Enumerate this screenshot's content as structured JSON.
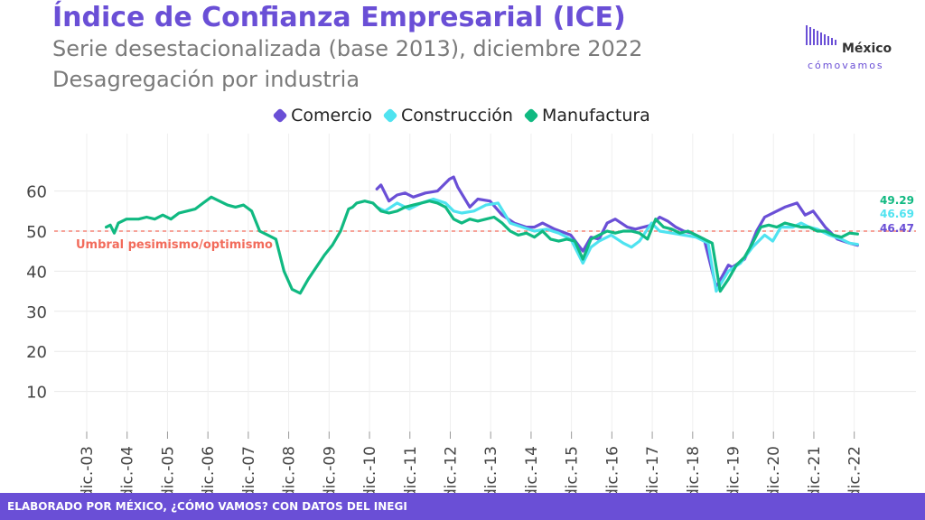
{
  "header": {
    "title": "Índice de Confianza Empresarial (ICE)",
    "subtitle1": "Serie desestacionalizada (base 2013), diciembre 2022",
    "subtitle2": "Desagregación por industria"
  },
  "logo": {
    "line1": "México",
    "line2": "cómovamos"
  },
  "footer": {
    "text": "ELABORADO POR MÉXICO, ¿CÓMO VAMOS? CON DATOS DEL INEGI"
  },
  "colors": {
    "comercio": "#6a4fd6",
    "construccion": "#4fe3f0",
    "manufactura": "#10b981",
    "threshold": "#f26b5b"
  },
  "chart_data": {
    "type": "line",
    "title": "Índice de Confianza Empresarial (ICE)",
    "ylim": [
      0,
      65
    ],
    "yticks": [
      10,
      20,
      30,
      40,
      50,
      60
    ],
    "grid": true,
    "legend_position": "top-center",
    "x_ticks": [
      "dic.-03",
      "dic.-04",
      "dic.-05",
      "dic.-06",
      "dic.-07",
      "dic.-08",
      "dic.-09",
      "dic.-10",
      "dic.-11",
      "dic.-12",
      "dic.-13",
      "dic.-14",
      "dic.-15",
      "dic.-16",
      "dic.-17",
      "dic.-18",
      "dic.-19",
      "dic.-20",
      "dic.-21",
      "dic.-22"
    ],
    "reference_line": {
      "value": 50,
      "label": "Umbral pesimismo/optimismo"
    },
    "end_labels": [
      {
        "series": "Manufactura",
        "text": "49.29"
      },
      {
        "series": "Construcción",
        "text": "46.69"
      },
      {
        "series": "Comercio",
        "text": "46.47"
      }
    ],
    "series": [
      {
        "name": "Comercio",
        "x": [
          2011.1,
          2011.2,
          2011.4,
          2011.6,
          2011.8,
          2012.0,
          2012.3,
          2012.6,
          2012.9,
          2013.0,
          2013.1,
          2013.4,
          2013.6,
          2013.9,
          2014.2,
          2014.5,
          2014.8,
          2015.0,
          2015.2,
          2015.5,
          2015.9,
          2016.2,
          2016.4,
          2016.6,
          2016.8,
          2017.0,
          2017.3,
          2017.5,
          2017.7,
          2017.9,
          2018.1,
          2018.3,
          2018.5,
          2018.7,
          2018.9,
          2019.2,
          2019.5,
          2019.8,
          2019.9,
          2020.2,
          2020.3,
          2020.5,
          2020.7,
          2021.0,
          2021.2,
          2021.5,
          2021.7,
          2021.9,
          2022.2,
          2022.5,
          2022.8,
          2023.0
        ],
        "y": [
          60.5,
          61.5,
          57.5,
          59,
          59.5,
          58.5,
          59.5,
          60,
          63,
          63.5,
          61,
          56,
          58,
          57.5,
          54,
          52,
          51,
          51,
          52,
          50.5,
          49,
          45,
          48.5,
          48,
          52,
          53,
          51,
          50.5,
          51,
          51.5,
          53.5,
          52.5,
          51,
          50,
          49.5,
          48,
          36,
          41.5,
          41,
          43,
          45,
          50,
          53.5,
          55,
          56,
          57,
          54,
          55,
          51,
          48,
          47,
          46.47
        ]
      },
      {
        "name": "Construcción",
        "x": [
          2011.1,
          2011.3,
          2011.6,
          2011.9,
          2012.2,
          2012.5,
          2012.8,
          2013.0,
          2013.2,
          2013.5,
          2013.8,
          2014.1,
          2014.4,
          2014.7,
          2015.0,
          2015.3,
          2015.6,
          2015.9,
          2016.2,
          2016.4,
          2016.6,
          2016.9,
          2017.2,
          2017.4,
          2017.6,
          2017.9,
          2018.1,
          2018.4,
          2018.7,
          2019.0,
          2019.3,
          2019.5,
          2019.8,
          2020.1,
          2020.4,
          2020.7,
          2020.9,
          2021.1,
          2021.4,
          2021.6,
          2021.8,
          2022.0,
          2022.3,
          2022.6,
          2022.8,
          2023.0
        ],
        "y": [
          56,
          55,
          57,
          55.5,
          57,
          58,
          57,
          55,
          54.5,
          55,
          56.5,
          57,
          52,
          51,
          50,
          50.5,
          49.5,
          48,
          42,
          46,
          47.5,
          49,
          47,
          46,
          47.5,
          52,
          50,
          49.5,
          49,
          48.5,
          47,
          35,
          40,
          42,
          46,
          49,
          47.5,
          51,
          51,
          52,
          51,
          50.5,
          49,
          48,
          47,
          46.69
        ]
      },
      {
        "name": "Manufactura",
        "x": [
          2004.4,
          2004.5,
          2004.6,
          2004.7,
          2004.9,
          2005.2,
          2005.4,
          2005.6,
          2005.8,
          2006.0,
          2006.2,
          2006.4,
          2006.6,
          2006.8,
          2007.0,
          2007.2,
          2007.4,
          2007.6,
          2007.8,
          2008.0,
          2008.2,
          2008.4,
          2008.6,
          2008.8,
          2009.0,
          2009.2,
          2009.4,
          2009.6,
          2009.8,
          2010.0,
          2010.2,
          2010.4,
          2010.5,
          2010.6,
          2010.8,
          2011.0,
          2011.2,
          2011.4,
          2011.6,
          2011.8,
          2012.0,
          2012.2,
          2012.4,
          2012.6,
          2012.8,
          2013.0,
          2013.2,
          2013.4,
          2013.6,
          2013.8,
          2014.0,
          2014.2,
          2014.4,
          2014.6,
          2014.8,
          2015.0,
          2015.2,
          2015.4,
          2015.6,
          2015.8,
          2016.0,
          2016.2,
          2016.4,
          2016.6,
          2016.8,
          2017.0,
          2017.2,
          2017.4,
          2017.6,
          2017.8,
          2018.0,
          2018.2,
          2018.4,
          2018.6,
          2018.8,
          2019.0,
          2019.2,
          2019.4,
          2019.6,
          2019.8,
          2020.0,
          2020.2,
          2020.4,
          2020.6,
          2020.8,
          2021.0,
          2021.2,
          2021.4,
          2021.6,
          2021.8,
          2022.0,
          2022.2,
          2022.4,
          2022.6,
          2022.8,
          2023.0
        ],
        "y": [
          51,
          51.5,
          49.5,
          52,
          53,
          53,
          53.5,
          53,
          54,
          53,
          54.5,
          55,
          55.5,
          57,
          58.5,
          57.5,
          56.5,
          56,
          56.5,
          55,
          50,
          49,
          48,
          40,
          35.5,
          34.5,
          38,
          41,
          44,
          46.5,
          50,
          55.5,
          56,
          57,
          57.5,
          57,
          55,
          54.5,
          55,
          56,
          56.5,
          57,
          57.5,
          57,
          56,
          53,
          52,
          53,
          52.5,
          53,
          53.5,
          52,
          50,
          49,
          49.5,
          48.5,
          50,
          48,
          47.5,
          48,
          47.5,
          43,
          48,
          49,
          50,
          49.5,
          50,
          50,
          49.5,
          48,
          53,
          51,
          50.5,
          49.5,
          50,
          49,
          48,
          47,
          35,
          38,
          41.5,
          43.5,
          47,
          51,
          51.5,
          51,
          52,
          51.5,
          51,
          51,
          50,
          50,
          49,
          48.5,
          49.5,
          49.29
        ]
      }
    ]
  }
}
